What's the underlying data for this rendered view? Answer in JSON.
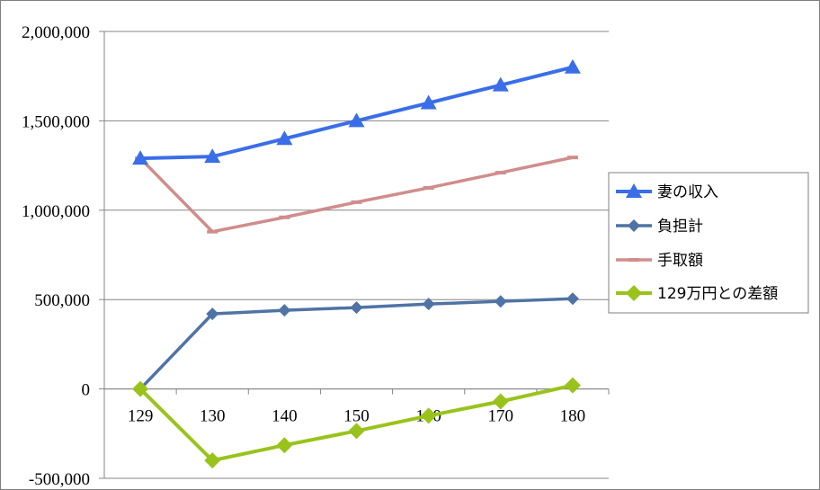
{
  "chart_data": {
    "type": "line",
    "title": "",
    "xlabel": "",
    "ylabel": "",
    "categories": [
      "129",
      "130",
      "140",
      "150",
      "160",
      "170",
      "180"
    ],
    "ylim": [
      -500000,
      2000000
    ],
    "yticks": [
      -500000,
      0,
      500000,
      1000000,
      1500000,
      2000000
    ],
    "ytick_labels": [
      "-500,000",
      "0",
      "500,000",
      "1,000,000",
      "1,500,000",
      "2,000,000"
    ],
    "negative_tick_color": "#ff0000",
    "grid": true,
    "legend_position": "right",
    "series": [
      {
        "name": "妻の収入",
        "color": "#3a6ee8",
        "marker": "triangle",
        "line_width": 4,
        "values": [
          1290000,
          1300000,
          1400000,
          1500000,
          1600000,
          1700000,
          1800000
        ]
      },
      {
        "name": "負担計",
        "color": "#4f73a4",
        "marker": "diamond",
        "line_width": 3.5,
        "values": [
          0,
          420000,
          440000,
          455000,
          475000,
          490000,
          505000
        ]
      },
      {
        "name": "手取額",
        "color": "#cf8d8b",
        "marker": "dash",
        "line_width": 3.5,
        "values": [
          1290000,
          880000,
          960000,
          1045000,
          1125000,
          1210000,
          1295000
        ]
      },
      {
        "name": "129万円との差額",
        "color": "#99c31b",
        "marker": "diamond-large",
        "line_width": 4,
        "values": [
          0,
          -400000,
          -315000,
          -235000,
          -150000,
          -70000,
          20000
        ]
      }
    ]
  }
}
